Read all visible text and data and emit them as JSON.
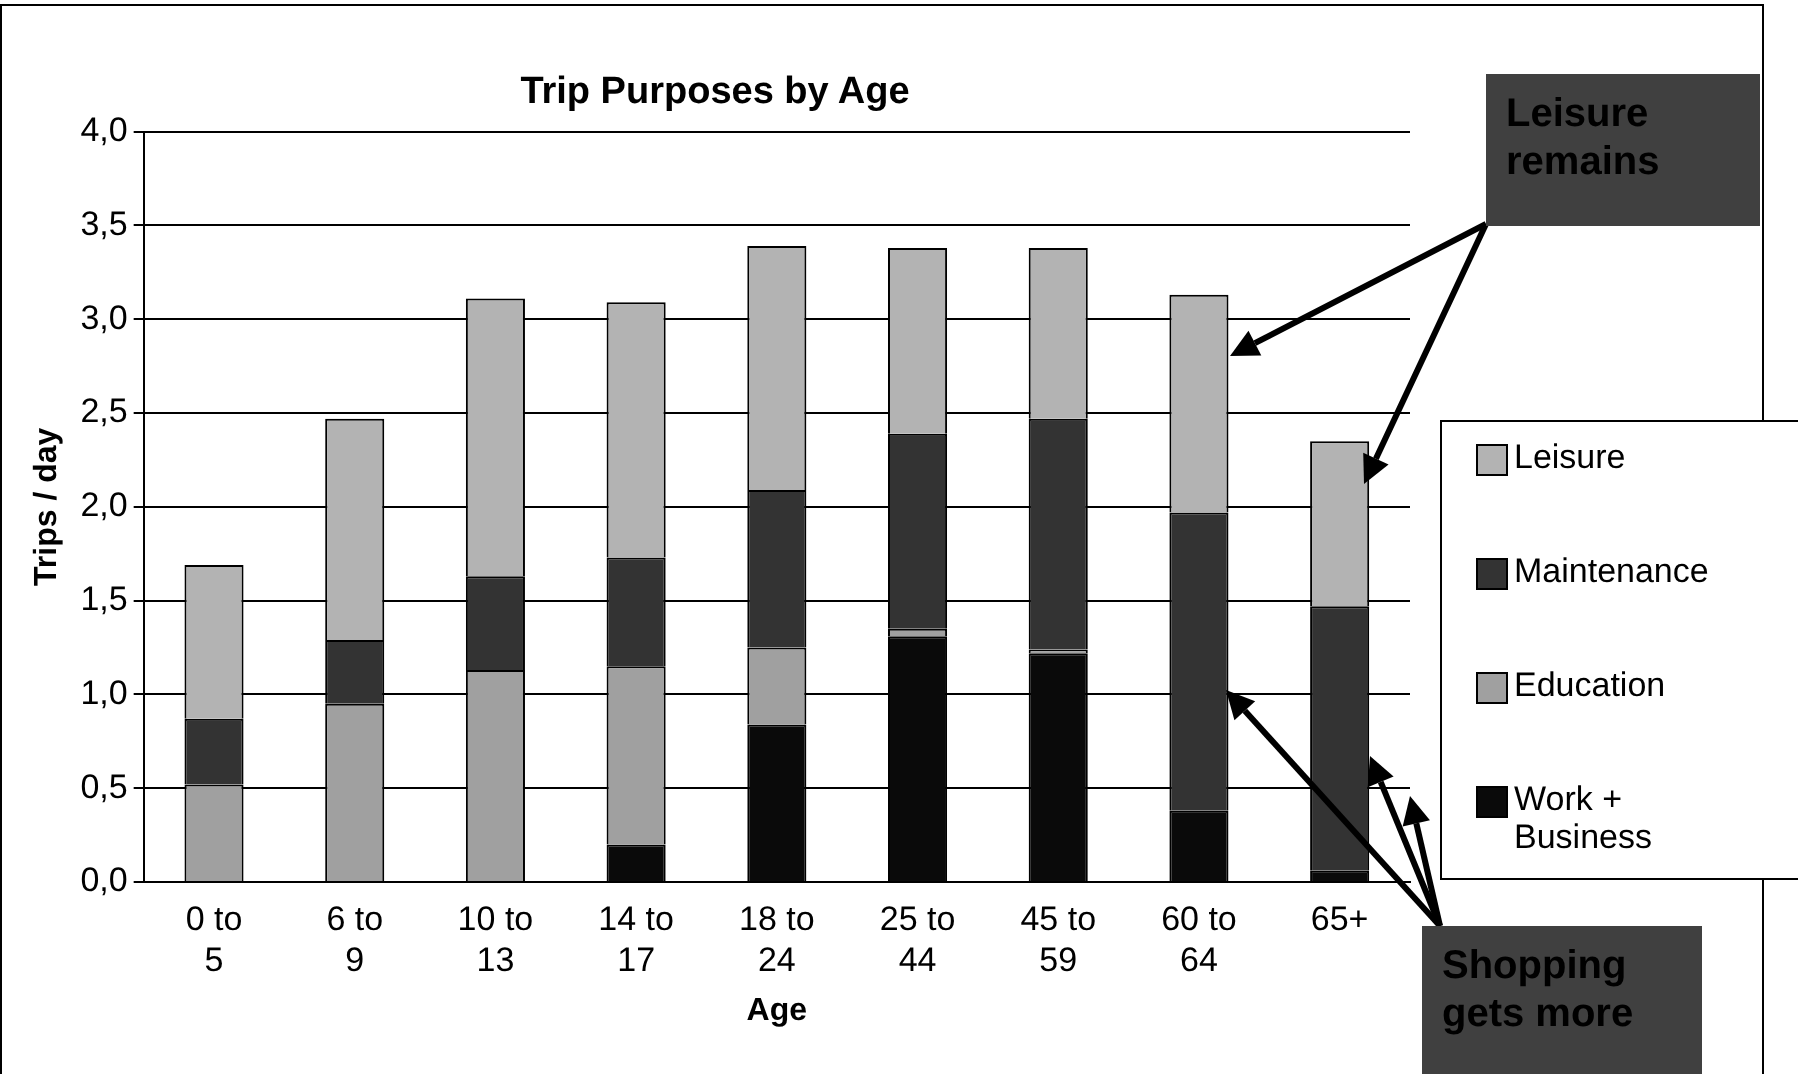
{
  "chart_data": {
    "type": "bar",
    "title": "Trip Purposes by Age",
    "xlabel": "Age",
    "ylabel": "Trips / day",
    "categories": [
      "0 to 5",
      "6 to 9",
      "10 to 13",
      "14 to 17",
      "18 to 24",
      "25 to 44",
      "45 to 59",
      "60 to 64",
      "65+"
    ],
    "stacked": true,
    "series": [
      {
        "name": "Work + Business",
        "color": "#0a0a0a",
        "values": [
          0,
          0,
          0,
          0.2,
          0.84,
          1.31,
          1.22,
          0.38,
          0.06
        ]
      },
      {
        "name": "Education",
        "color": "#a0a0a0",
        "values": [
          0.52,
          0.95,
          1.13,
          0.95,
          0.41,
          0.04,
          0.02,
          0,
          0
        ]
      },
      {
        "name": "Maintenance",
        "color": "#333333",
        "values": [
          0.35,
          0.34,
          0.5,
          0.58,
          0.84,
          1.04,
          1.23,
          1.59,
          1.41
        ]
      },
      {
        "name": "Leisure",
        "color": "#b3b3b3",
        "values": [
          0.82,
          1.18,
          1.48,
          1.36,
          1.3,
          0.99,
          0.91,
          1.16,
          0.88
        ]
      }
    ],
    "ylim": [
      0,
      4
    ],
    "yticks": [
      {
        "value": 0,
        "label": "0,0"
      },
      {
        "value": 0.5,
        "label": "0,5"
      },
      {
        "value": 1,
        "label": "1,0"
      },
      {
        "value": 1.5,
        "label": "1,5"
      },
      {
        "value": 2,
        "label": "2,0"
      },
      {
        "value": 2.5,
        "label": "2,5"
      },
      {
        "value": 3,
        "label": "3,0"
      },
      {
        "value": 3.5,
        "label": "3,5"
      },
      {
        "value": 4,
        "label": "4,0"
      }
    ],
    "grid": "y",
    "legend": "right",
    "annotations": [
      "Leisure remains",
      "Shopping gets more"
    ]
  }
}
